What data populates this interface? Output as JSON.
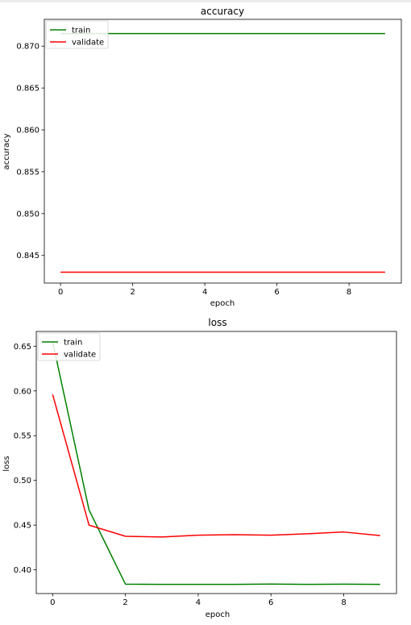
{
  "chart_data": [
    {
      "type": "line",
      "title": "accuracy",
      "xlabel": "epoch",
      "ylabel": "accuracy",
      "x": [
        0,
        1,
        2,
        3,
        4,
        5,
        6,
        7,
        8,
        9
      ],
      "xticks": [
        "0",
        "2",
        "4",
        "6",
        "8"
      ],
      "yticks": [
        "0.845",
        "0.850",
        "0.855",
        "0.860",
        "0.865",
        "0.870"
      ],
      "xlim": [
        -0.45,
        9.45
      ],
      "ylim": [
        0.8417,
        0.8732
      ],
      "legend": "upper left",
      "series": [
        {
          "name": "train",
          "color": "#008000",
          "values": [
            0.8715,
            0.8715,
            0.8715,
            0.8715,
            0.8715,
            0.8715,
            0.8715,
            0.8715,
            0.8715,
            0.8715
          ]
        },
        {
          "name": "validate",
          "color": "#ff0000",
          "values": [
            0.843,
            0.843,
            0.843,
            0.843,
            0.843,
            0.843,
            0.843,
            0.843,
            0.843,
            0.843
          ]
        }
      ]
    },
    {
      "type": "line",
      "title": "loss",
      "xlabel": "epoch",
      "ylabel": "loss",
      "x": [
        0,
        1,
        2,
        3,
        4,
        5,
        6,
        7,
        8,
        9
      ],
      "xticks": [
        "0",
        "2",
        "4",
        "6",
        "8"
      ],
      "yticks": [
        "0.40",
        "0.45",
        "0.50",
        "0.55",
        "0.60",
        "0.65"
      ],
      "xlim": [
        -0.45,
        9.45
      ],
      "ylim": [
        0.3735,
        0.6665
      ],
      "legend": "upper left",
      "series": [
        {
          "name": "train",
          "color": "#008000",
          "values": [
            0.655,
            0.467,
            0.384,
            0.3837,
            0.3837,
            0.3838,
            0.3841,
            0.3837,
            0.384,
            0.3838
          ]
        },
        {
          "name": "validate",
          "color": "#ff0000",
          "values": [
            0.596,
            0.45,
            0.4375,
            0.4367,
            0.4387,
            0.4393,
            0.4387,
            0.4403,
            0.4423,
            0.4383
          ]
        }
      ]
    }
  ]
}
